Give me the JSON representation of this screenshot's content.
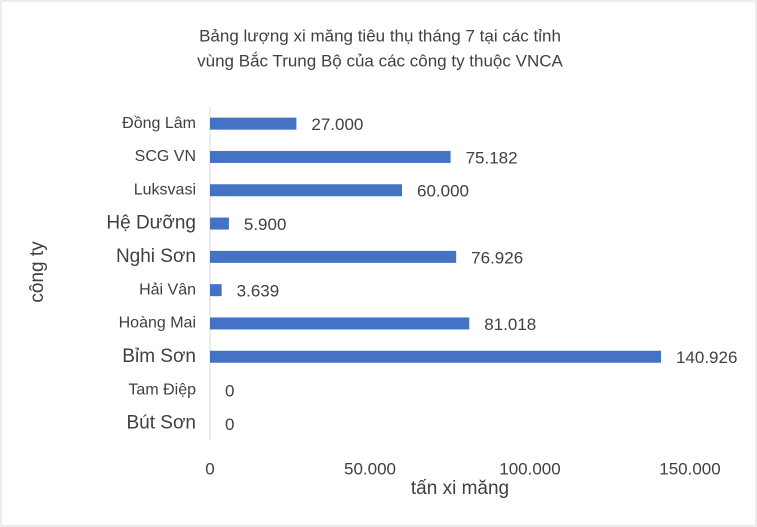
{
  "chart_data": {
    "type": "bar",
    "orientation": "horizontal",
    "title": [
      "Bảng lượng xi măng tiêu thụ tháng 7 tại các tỉnh",
      "vùng Bắc Trung Bộ của các công ty thuộc VNCA"
    ],
    "x_label": "tấn xi măng",
    "y_label": "công ty",
    "categories": [
      "Đồng Lâm",
      "SCG VN",
      "Luksvasi",
      "Hệ Dưỡng",
      "Nghi Sơn",
      "Hải Vân",
      "Hoàng Mai",
      "Bỉm Sơn",
      "Tam Điệp",
      "Bút Sơn"
    ],
    "values": [
      27000,
      75182,
      60000,
      5900,
      76926,
      3639,
      81018,
      140926,
      0,
      0
    ],
    "value_labels": [
      "27.000",
      "75.182",
      "60.000",
      "5.900",
      "76.926",
      "3.639",
      "81.018",
      "140.926",
      "0",
      "0"
    ],
    "color": "#4472c4",
    "xlim": [
      0,
      150000
    ],
    "xticks": [
      0,
      {
        "value": 50000,
        "label": "50.000"
      },
      {
        "value": 100000,
        "label": "100.000"
      },
      {
        "value": 150000,
        "label": "150.000"
      }
    ],
    "grid": false
  }
}
